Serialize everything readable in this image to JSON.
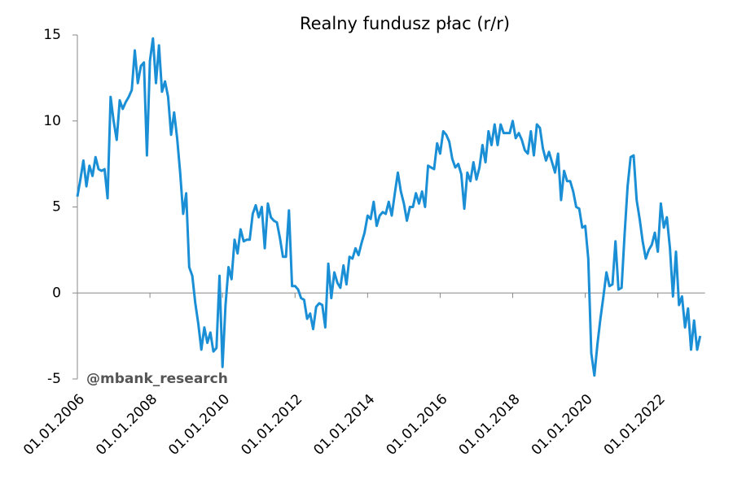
{
  "chart_data": {
    "type": "line",
    "title": "Realny fundusz płac (r/r)",
    "annotation": "@mbank_research",
    "x": [
      "2006-01",
      "2006-02",
      "2006-03",
      "2006-04",
      "2006-05",
      "2006-06",
      "2006-07",
      "2006-08",
      "2006-09",
      "2006-10",
      "2006-11",
      "2006-12",
      "2007-01",
      "2007-02",
      "2007-03",
      "2007-04",
      "2007-05",
      "2007-06",
      "2007-07",
      "2007-08",
      "2007-09",
      "2007-10",
      "2007-11",
      "2007-12",
      "2008-01",
      "2008-02",
      "2008-03",
      "2008-04",
      "2008-05",
      "2008-06",
      "2008-07",
      "2008-08",
      "2008-09",
      "2008-10",
      "2008-11",
      "2008-12",
      "2009-01",
      "2009-02",
      "2009-03",
      "2009-04",
      "2009-05",
      "2009-06",
      "2009-07",
      "2009-08",
      "2009-09",
      "2009-10",
      "2009-11",
      "2009-12",
      "2010-01",
      "2010-02",
      "2010-03",
      "2010-04",
      "2010-05",
      "2010-06",
      "2010-07",
      "2010-08",
      "2010-09",
      "2010-10",
      "2010-11",
      "2010-12",
      "2011-01",
      "2011-02",
      "2011-03",
      "2011-04",
      "2011-05",
      "2011-06",
      "2011-07",
      "2011-08",
      "2011-09",
      "2011-10",
      "2011-11",
      "2011-12",
      "2012-01",
      "2012-02",
      "2012-03",
      "2012-04",
      "2012-05",
      "2012-06",
      "2012-07",
      "2012-08",
      "2012-09",
      "2012-10",
      "2012-11",
      "2012-12",
      "2013-01",
      "2013-02",
      "2013-03",
      "2013-04",
      "2013-05",
      "2013-06",
      "2013-07",
      "2013-08",
      "2013-09",
      "2013-10",
      "2013-11",
      "2013-12",
      "2014-01",
      "2014-02",
      "2014-03",
      "2014-04",
      "2014-05",
      "2014-06",
      "2014-07",
      "2014-08",
      "2014-09",
      "2014-10",
      "2014-11",
      "2014-12",
      "2015-01",
      "2015-02",
      "2015-03",
      "2015-04",
      "2015-05",
      "2015-06",
      "2015-07",
      "2015-08",
      "2015-09",
      "2015-10",
      "2015-11",
      "2015-12",
      "2016-01",
      "2016-02",
      "2016-03",
      "2016-04",
      "2016-05",
      "2016-06",
      "2016-07",
      "2016-08",
      "2016-09",
      "2016-10",
      "2016-11",
      "2016-12",
      "2017-01",
      "2017-02",
      "2017-03",
      "2017-04",
      "2017-05",
      "2017-06",
      "2017-07",
      "2017-08",
      "2017-09",
      "2017-10",
      "2017-11",
      "2017-12",
      "2018-01",
      "2018-02",
      "2018-03",
      "2018-04",
      "2018-05",
      "2018-06",
      "2018-07",
      "2018-08",
      "2018-09",
      "2018-10",
      "2018-11",
      "2018-12",
      "2019-01",
      "2019-02",
      "2019-03",
      "2019-04",
      "2019-05",
      "2019-06",
      "2019-07",
      "2019-08",
      "2019-09",
      "2019-10",
      "2019-11",
      "2019-12",
      "2020-01",
      "2020-02",
      "2020-03",
      "2020-04",
      "2020-05",
      "2020-06",
      "2020-07",
      "2020-08",
      "2020-09",
      "2020-10",
      "2020-11",
      "2020-12",
      "2021-01",
      "2021-02",
      "2021-03",
      "2021-04",
      "2021-05",
      "2021-06",
      "2021-07",
      "2021-08",
      "2021-09",
      "2021-10",
      "2021-11",
      "2021-12",
      "2022-01",
      "2022-02",
      "2022-03",
      "2022-04",
      "2022-05",
      "2022-06",
      "2022-07",
      "2022-08",
      "2022-09",
      "2022-10",
      "2022-11",
      "2022-12",
      "2023-01",
      "2023-02",
      "2023-03"
    ],
    "series": [
      {
        "color": "#1a8fd6",
        "values": [
          5.6,
          6.6,
          7.7,
          6.2,
          7.4,
          6.8,
          7.9,
          7.2,
          7.1,
          7.2,
          5.5,
          11.4,
          10.0,
          8.9,
          11.2,
          10.7,
          11.1,
          11.4,
          11.8,
          14.1,
          12.2,
          13.2,
          13.4,
          8.0,
          13.5,
          14.8,
          12.2,
          14.4,
          11.7,
          12.3,
          11.4,
          9.2,
          10.5,
          9.0,
          7.0,
          4.6,
          5.8,
          1.5,
          1.0,
          -0.6,
          -1.8,
          -3.3,
          -2.0,
          -2.9,
          -2.3,
          -3.4,
          -3.2,
          1.0,
          -4.3,
          -0.7,
          1.5,
          0.8,
          3.1,
          2.3,
          3.7,
          3.0,
          3.1,
          3.1,
          4.6,
          5.1,
          4.4,
          5.0,
          2.6,
          5.2,
          4.4,
          4.2,
          4.1,
          3.2,
          2.1,
          2.1,
          4.8,
          0.4,
          0.4,
          0.2,
          -0.3,
          -0.4,
          -1.5,
          -1.2,
          -2.1,
          -0.8,
          -0.6,
          -0.7,
          -2.0,
          1.7,
          -0.3,
          1.2,
          0.6,
          0.3,
          1.6,
          0.5,
          2.1,
          2.0,
          2.6,
          2.2,
          2.9,
          3.5,
          4.5,
          4.3,
          5.3,
          3.9,
          4.5,
          4.7,
          4.6,
          5.3,
          4.5,
          5.8,
          7.0,
          5.9,
          5.2,
          4.2,
          5.0,
          5.0,
          5.8,
          5.2,
          5.9,
          5.0,
          7.4,
          7.3,
          7.2,
          8.7,
          8.1,
          9.4,
          9.2,
          8.8,
          7.8,
          7.3,
          7.5,
          6.9,
          4.9,
          7.0,
          6.5,
          7.6,
          6.6,
          7.3,
          8.6,
          7.6,
          9.4,
          8.6,
          9.8,
          8.6,
          9.8,
          9.3,
          9.3,
          9.3,
          10.0,
          9.0,
          9.3,
          8.9,
          8.3,
          8.1,
          9.4,
          8.0,
          9.8,
          9.6,
          8.4,
          7.7,
          8.2,
          7.6,
          7.0,
          8.1,
          5.4,
          7.1,
          6.5,
          6.5,
          5.9,
          5.0,
          4.9,
          3.8,
          3.9,
          2.0,
          -3.5,
          -4.8,
          -3.0,
          -1.5,
          -0.2,
          1.2,
          0.4,
          0.5,
          3.0,
          0.2,
          0.3,
          3.4,
          6.2,
          7.9,
          8.0,
          5.4,
          4.3,
          3.0,
          2.0,
          2.5,
          2.8,
          3.5,
          2.4,
          5.2,
          3.8,
          4.4,
          2.6,
          -0.2,
          2.4,
          -0.7,
          -0.2,
          -2.0,
          -0.9,
          -3.3,
          -1.6,
          -3.3,
          -2.5
        ]
      }
    ],
    "ylim": [
      -5,
      15
    ],
    "yticks": [
      -5,
      0,
      5,
      10,
      15
    ],
    "xticks": [
      {
        "value": "2006-01",
        "label": "01.01.2006"
      },
      {
        "value": "2008-01",
        "label": "01.01.2008"
      },
      {
        "value": "2010-01",
        "label": "01.01.2010"
      },
      {
        "value": "2012-01",
        "label": "01.01.2012"
      },
      {
        "value": "2014-01",
        "label": "01.01.2014"
      },
      {
        "value": "2016-01",
        "label": "01.01.2016"
      },
      {
        "value": "2018-01",
        "label": "01.01.2018"
      },
      {
        "value": "2020-01",
        "label": "01.01.2020"
      },
      {
        "value": "2022-01",
        "label": "01.01.2022"
      }
    ],
    "grid": false
  }
}
